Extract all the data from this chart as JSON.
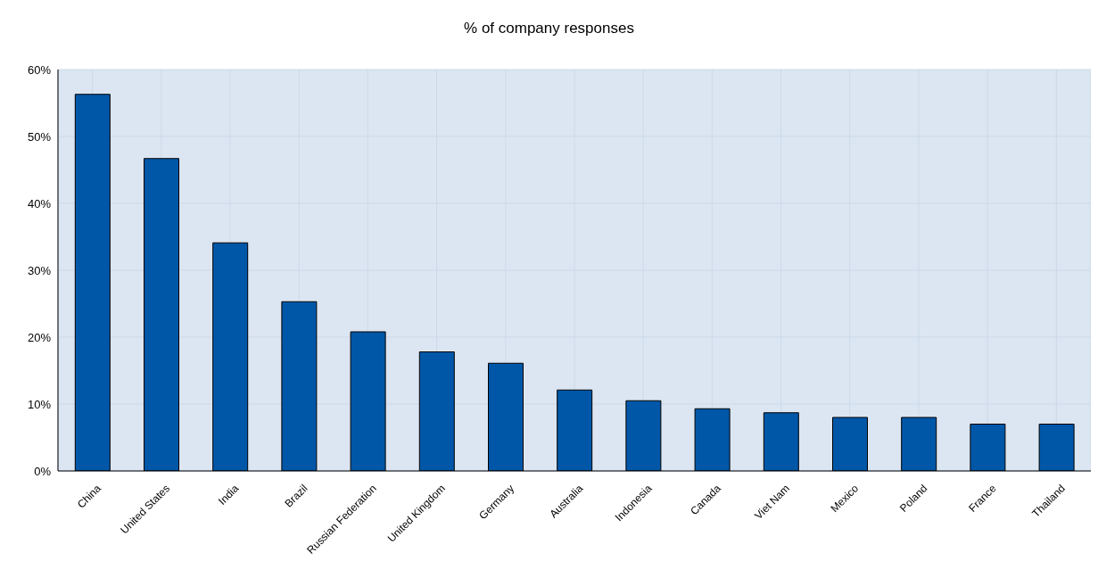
{
  "chart_data": {
    "type": "bar",
    "title": "% of company responses",
    "categories": [
      "China",
      "United States",
      "India",
      "Brazil",
      "Russian Federation",
      "United Kingdom",
      "Germany",
      "Australia",
      "Indonesia",
      "Canada",
      "Viet Nam",
      "Mexico",
      "Poland",
      "France",
      "Thailand"
    ],
    "values": [
      56.3,
      46.7,
      34.1,
      25.3,
      20.8,
      17.8,
      16.1,
      12.1,
      10.5,
      9.3,
      8.7,
      8.0,
      8.0,
      7.0,
      7.0
    ],
    "color": "#0057a8",
    "ylim": [
      0,
      60
    ],
    "yticks": [
      {
        "value": 0,
        "label": "0%"
      },
      {
        "value": 10,
        "label": "10%"
      },
      {
        "value": 20,
        "label": "20%"
      },
      {
        "value": 30,
        "label": "30%"
      },
      {
        "value": 40,
        "label": "40%"
      },
      {
        "value": 50,
        "label": "50%"
      },
      {
        "value": 60,
        "label": "60%"
      }
    ],
    "grid": true
  }
}
